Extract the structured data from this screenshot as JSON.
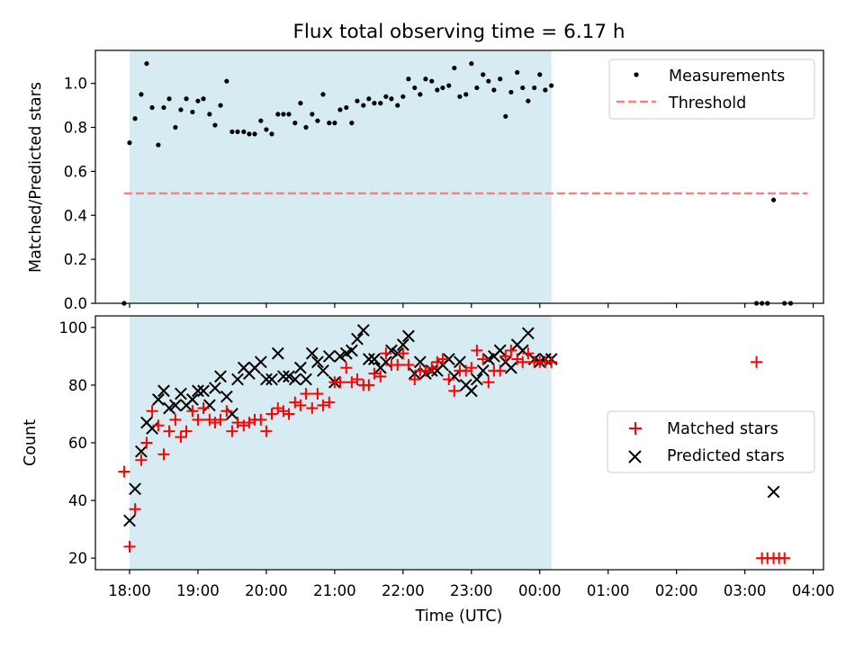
{
  "title": "Flux total observing time = 6.17 h",
  "colors": {
    "shade": "#add8e6",
    "measurement": "#000000",
    "threshold": "#ff7f7f",
    "matched": "#ff0000",
    "predicted": "#000000"
  },
  "chart_data": [
    {
      "type": "scatter",
      "ylabel": "Matched/Predicted stars",
      "xlabel": "",
      "xlim": [
        17.5,
        28.15
      ],
      "ylim": [
        0,
        1.15
      ],
      "yticks": [
        0.0,
        0.2,
        0.4,
        0.6,
        0.8,
        1.0
      ],
      "ytick_labels": [
        "0.0",
        "0.2",
        "0.4",
        "0.6",
        "0.8",
        "1.0"
      ],
      "shaded_span": [
        18.0,
        24.17
      ],
      "grid": false,
      "legend_position": "top-right",
      "legend": [
        "Measurements",
        "Threshold"
      ],
      "threshold": {
        "name": "Threshold",
        "y": 0.5,
        "x": [
          17.92,
          27.92
        ]
      },
      "series": [
        {
          "name": "Measurements",
          "x": [
            17.92,
            18.0,
            18.08,
            18.17,
            18.25,
            18.33,
            18.42,
            18.5,
            18.58,
            18.67,
            18.75,
            18.83,
            18.92,
            19.0,
            19.08,
            19.17,
            19.25,
            19.33,
            19.42,
            19.5,
            19.58,
            19.67,
            19.75,
            19.83,
            19.92,
            20.0,
            20.08,
            20.17,
            20.25,
            20.33,
            20.42,
            20.5,
            20.58,
            20.67,
            20.75,
            20.83,
            20.92,
            21.0,
            21.08,
            21.17,
            21.25,
            21.33,
            21.42,
            21.5,
            21.58,
            21.67,
            21.75,
            21.83,
            21.92,
            22.0,
            22.08,
            22.17,
            22.25,
            22.33,
            22.42,
            22.5,
            22.58,
            22.67,
            22.75,
            22.83,
            22.92,
            23.0,
            23.08,
            23.17,
            23.25,
            23.33,
            23.42,
            23.5,
            23.58,
            23.67,
            23.75,
            23.83,
            23.92,
            24.0,
            24.08,
            24.17,
            27.17,
            27.25,
            27.33,
            27.42,
            27.58,
            27.67
          ],
          "y": [
            0.0,
            0.73,
            0.84,
            0.95,
            1.09,
            0.89,
            0.72,
            0.89,
            0.93,
            0.8,
            0.88,
            0.93,
            0.87,
            0.92,
            0.93,
            0.86,
            0.81,
            0.9,
            1.01,
            0.78,
            0.78,
            0.78,
            0.77,
            0.77,
            0.83,
            0.79,
            0.77,
            0.86,
            0.86,
            0.86,
            0.82,
            0.91,
            0.8,
            0.86,
            0.83,
            0.95,
            0.82,
            0.82,
            0.88,
            0.89,
            0.82,
            0.92,
            0.9,
            0.93,
            0.91,
            0.91,
            0.94,
            0.93,
            0.9,
            0.94,
            1.02,
            0.98,
            0.95,
            1.02,
            1.01,
            0.97,
            0.98,
            0.99,
            1.07,
            0.94,
            0.95,
            1.09,
            0.98,
            1.04,
            1.01,
            0.97,
            1.02,
            0.85,
            0.96,
            1.05,
            0.98,
            0.92,
            0.98,
            1.04,
            0.97,
            0.99,
            0.0,
            0.0,
            0.0,
            0.47,
            0.0,
            0.0
          ]
        }
      ]
    },
    {
      "type": "scatter",
      "ylabel": "Count",
      "xlabel": "Time (UTC)",
      "xlim": [
        17.5,
        28.15
      ],
      "ylim": [
        16,
        104
      ],
      "yticks": [
        20,
        40,
        60,
        80,
        100
      ],
      "ytick_labels": [
        "20",
        "40",
        "60",
        "80",
        "100"
      ],
      "xticks": [
        18,
        19,
        20,
        21,
        22,
        23,
        24,
        25,
        26,
        27,
        28
      ],
      "xtick_labels": [
        "18:00",
        "19:00",
        "20:00",
        "21:00",
        "22:00",
        "23:00",
        "00:00",
        "01:00",
        "02:00",
        "03:00",
        "04:00"
      ],
      "shaded_span": [
        18.0,
        24.17
      ],
      "grid": false,
      "legend_position": "center-right",
      "legend": [
        "Matched stars",
        "Predicted stars"
      ],
      "series": [
        {
          "name": "Matched stars",
          "marker": "+",
          "x": [
            17.92,
            18.0,
            18.08,
            18.17,
            18.25,
            18.33,
            18.42,
            18.5,
            18.58,
            18.67,
            18.75,
            18.83,
            18.92,
            19.0,
            19.08,
            19.17,
            19.25,
            19.33,
            19.42,
            19.5,
            19.58,
            19.67,
            19.75,
            19.83,
            19.92,
            20.0,
            20.08,
            20.17,
            20.25,
            20.33,
            20.42,
            20.5,
            20.58,
            20.67,
            20.75,
            20.83,
            20.92,
            21.0,
            21.08,
            21.17,
            21.25,
            21.33,
            21.42,
            21.5,
            21.58,
            21.67,
            21.75,
            21.83,
            21.92,
            22.0,
            22.08,
            22.17,
            22.25,
            22.33,
            22.42,
            22.5,
            22.58,
            22.67,
            22.75,
            22.83,
            22.92,
            23.0,
            23.08,
            23.17,
            23.25,
            23.33,
            23.42,
            23.5,
            23.58,
            23.67,
            23.75,
            23.83,
            23.92,
            24.0,
            24.08,
            24.17,
            27.17,
            27.25,
            27.33,
            27.42,
            27.5,
            27.58
          ],
          "y": [
            50,
            24,
            37,
            54,
            60,
            71,
            66,
            56,
            64,
            68,
            62,
            64,
            71,
            68,
            72,
            68,
            67,
            68,
            71,
            64,
            67,
            66,
            67,
            68,
            68,
            64,
            70,
            72,
            71,
            70,
            74,
            73,
            77,
            72,
            77,
            73,
            74,
            81,
            81,
            86,
            81,
            82,
            80,
            80,
            84,
            83,
            91,
            87,
            87,
            91,
            87,
            82,
            85,
            85,
            86,
            88,
            89,
            82,
            78,
            85,
            85,
            86,
            92,
            89,
            81,
            85,
            85,
            90,
            92,
            89,
            88,
            91,
            88,
            88,
            88,
            88,
            88,
            20,
            20,
            20,
            20,
            20
          ]
        },
        {
          "name": "Predicted stars",
          "marker": "x",
          "x": [
            18.0,
            18.08,
            18.17,
            18.25,
            18.33,
            18.42,
            18.5,
            18.58,
            18.67,
            18.75,
            18.83,
            18.92,
            19.0,
            19.08,
            19.17,
            19.25,
            19.33,
            19.42,
            19.5,
            19.58,
            19.67,
            19.75,
            19.83,
            19.92,
            20.0,
            20.08,
            20.17,
            20.25,
            20.33,
            20.42,
            20.5,
            20.58,
            20.67,
            20.75,
            20.83,
            20.92,
            21.0,
            21.08,
            21.17,
            21.25,
            21.33,
            21.42,
            21.5,
            21.58,
            21.67,
            21.75,
            21.83,
            21.92,
            22.0,
            22.08,
            22.17,
            22.25,
            22.33,
            22.42,
            22.5,
            22.58,
            22.67,
            22.75,
            22.83,
            22.92,
            23.0,
            23.08,
            23.17,
            23.25,
            23.33,
            23.42,
            23.5,
            23.58,
            23.67,
            23.75,
            23.83,
            23.92,
            24.0,
            24.08,
            24.17,
            27.42
          ],
          "y": [
            33,
            44,
            57,
            67,
            65,
            75,
            78,
            72,
            73,
            77,
            73,
            75,
            78,
            78,
            73,
            79,
            83,
            76,
            70,
            82,
            86,
            84,
            86,
            88,
            82,
            82,
            91,
            83,
            83,
            82,
            86,
            82,
            91,
            88,
            85,
            90,
            81,
            90,
            91,
            92,
            96,
            99,
            89,
            89,
            86,
            88,
            92,
            91,
            94,
            97,
            84,
            88,
            84,
            85,
            85,
            87,
            89,
            83,
            88,
            80,
            78,
            82,
            85,
            89,
            90,
            92,
            88,
            86,
            94,
            92,
            98,
            89,
            88,
            89,
            89,
            43
          ]
        }
      ]
    }
  ]
}
